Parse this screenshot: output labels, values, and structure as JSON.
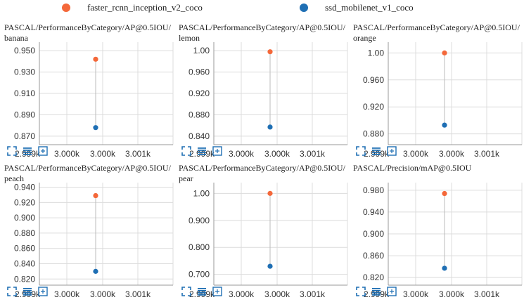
{
  "legend": {
    "items": [
      {
        "name": "faster_rcnn_inception_v2_coco",
        "color": "#f4683a"
      },
      {
        "name": "ssd_mobilenet_v1_coco",
        "color": "#1f6fb4"
      }
    ]
  },
  "toolbar": {
    "icons": [
      "fit-domain-icon",
      "toggle-log-icon",
      "toggle-expand-icon"
    ]
  },
  "chart_data": [
    {
      "type": "scatter",
      "title": "PASCAL/PerformanceByCategory/AP@0.5IOU/banana",
      "x_ticks": [
        "2.999k",
        "3.000k",
        "3.000k",
        "3.001k"
      ],
      "xlim": [
        2999.2,
        3001.1
      ],
      "y_ticks": [
        0.87,
        0.89,
        0.91,
        0.93,
        0.95
      ],
      "y_tick_labels": [
        "0.870",
        "0.890",
        "0.910",
        "0.930",
        "0.950"
      ],
      "ylim": [
        0.862,
        0.958
      ],
      "grid": true,
      "series": [
        {
          "name": "faster_rcnn_inception_v2_coco",
          "color": "#f4683a",
          "x": [
            3000
          ],
          "y": [
            0.942
          ]
        },
        {
          "name": "ssd_mobilenet_v1_coco",
          "color": "#1f6fb4",
          "x": [
            3000
          ],
          "y": [
            0.878
          ]
        }
      ]
    },
    {
      "type": "scatter",
      "title": "PASCAL/PerformanceByCategory/AP@0.5IOU/lemon",
      "x_ticks": [
        "2.999k",
        "3.000k",
        "3.000k",
        "3.001k"
      ],
      "xlim": [
        2999.2,
        3001.1
      ],
      "y_ticks": [
        0.84,
        0.88,
        0.92,
        0.96,
        1.0
      ],
      "y_tick_labels": [
        "0.840",
        "0.880",
        "0.920",
        "0.960",
        "1.00"
      ],
      "ylim": [
        0.824,
        1.016
      ],
      "grid": true,
      "series": [
        {
          "name": "faster_rcnn_inception_v2_coco",
          "color": "#f4683a",
          "x": [
            3000
          ],
          "y": [
            0.998
          ]
        },
        {
          "name": "ssd_mobilenet_v1_coco",
          "color": "#1f6fb4",
          "x": [
            3000
          ],
          "y": [
            0.857
          ]
        }
      ]
    },
    {
      "type": "scatter",
      "title": "PASCAL/PerformanceByCategory/AP@0.5IOU/orange",
      "x_ticks": [
        "2.999k",
        "3.000k",
        "3.000k",
        "3.001k"
      ],
      "xlim": [
        2999.2,
        3001.1
      ],
      "y_ticks": [
        0.88,
        0.92,
        0.96,
        1.0
      ],
      "y_tick_labels": [
        "0.880",
        "0.920",
        "0.960",
        "1.00"
      ],
      "ylim": [
        0.864,
        1.016
      ],
      "grid": true,
      "series": [
        {
          "name": "faster_rcnn_inception_v2_coco",
          "color": "#f4683a",
          "x": [
            3000
          ],
          "y": [
            1.0
          ]
        },
        {
          "name": "ssd_mobilenet_v1_coco",
          "color": "#1f6fb4",
          "x": [
            3000
          ],
          "y": [
            0.893
          ]
        }
      ]
    },
    {
      "type": "scatter",
      "title": "PASCAL/PerformanceByCategory/AP@0.5IOU/peach",
      "x_ticks": [
        "2.999k",
        "3.000k",
        "3.000k",
        "3.001k"
      ],
      "xlim": [
        2999.2,
        3001.1
      ],
      "y_ticks": [
        0.82,
        0.84,
        0.86,
        0.88,
        0.9,
        0.92,
        0.94
      ],
      "y_tick_labels": [
        "0.820",
        "0.840",
        "0.860",
        "0.880",
        "0.900",
        "0.920",
        "0.940"
      ],
      "ylim": [
        0.812,
        0.946
      ],
      "grid": true,
      "series": [
        {
          "name": "faster_rcnn_inception_v2_coco",
          "color": "#f4683a",
          "x": [
            3000
          ],
          "y": [
            0.929
          ]
        },
        {
          "name": "ssd_mobilenet_v1_coco",
          "color": "#1f6fb4",
          "x": [
            3000
          ],
          "y": [
            0.83
          ]
        }
      ]
    },
    {
      "type": "scatter",
      "title": "PASCAL/PerformanceByCategory/AP@0.5IOU/pear",
      "x_ticks": [
        "2.999k",
        "3.000k",
        "3.000k",
        "3.001k"
      ],
      "xlim": [
        2999.2,
        3001.1
      ],
      "y_ticks": [
        0.7,
        0.8,
        0.9,
        1.0
      ],
      "y_tick_labels": [
        "0.700",
        "0.800",
        "0.900",
        "1.00"
      ],
      "ylim": [
        0.66,
        1.04
      ],
      "grid": true,
      "series": [
        {
          "name": "faster_rcnn_inception_v2_coco",
          "color": "#f4683a",
          "x": [
            3000
          ],
          "y": [
            1.0
          ]
        },
        {
          "name": "ssd_mobilenet_v1_coco",
          "color": "#1f6fb4",
          "x": [
            3000
          ],
          "y": [
            0.73
          ]
        }
      ]
    },
    {
      "type": "scatter",
      "title": "PASCAL/Precision/mAP@0.5IOU",
      "x_ticks": [
        "2.999k",
        "3.000k",
        "3.000k",
        "3.001k"
      ],
      "xlim": [
        2999.2,
        3001.1
      ],
      "y_ticks": [
        0.82,
        0.86,
        0.9,
        0.94,
        0.98
      ],
      "y_tick_labels": [
        "0.820",
        "0.860",
        "0.900",
        "0.940",
        "0.980"
      ],
      "ylim": [
        0.806,
        0.994
      ],
      "grid": true,
      "series": [
        {
          "name": "faster_rcnn_inception_v2_coco",
          "color": "#f4683a",
          "x": [
            3000
          ],
          "y": [
            0.974
          ]
        },
        {
          "name": "ssd_mobilenet_v1_coco",
          "color": "#1f6fb4",
          "x": [
            3000
          ],
          "y": [
            0.837
          ]
        }
      ]
    }
  ]
}
